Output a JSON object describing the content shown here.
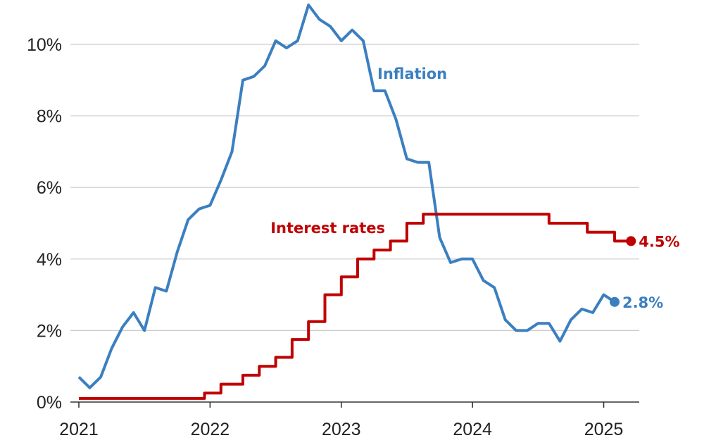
{
  "chart_data": {
    "type": "line",
    "title": "",
    "xlabel": "",
    "ylabel": "",
    "xlim": [
      2021.0,
      2025.25
    ],
    "ylim": [
      0,
      11
    ],
    "grid": true,
    "legend": "direct labels",
    "x_ticks": [
      {
        "value": 2021,
        "label": "2021"
      },
      {
        "value": 2022,
        "label": "2022"
      },
      {
        "value": 2023,
        "label": "2023"
      },
      {
        "value": 2024,
        "label": "2024"
      },
      {
        "value": 2025,
        "label": "2025"
      }
    ],
    "y_ticks": [
      {
        "value": 0,
        "label": "0%"
      },
      {
        "value": 2,
        "label": "2%"
      },
      {
        "value": 4,
        "label": "4%"
      },
      {
        "value": 6,
        "label": "6%"
      },
      {
        "value": 8,
        "label": "8%"
      },
      {
        "value": 10,
        "label": "10%"
      }
    ],
    "series": [
      {
        "name": "Inflation",
        "color": "#3b7fc0",
        "end_label": "2.8%",
        "x": [
          2021.0,
          2021.083,
          2021.167,
          2021.25,
          2021.333,
          2021.417,
          2021.5,
          2021.583,
          2021.667,
          2021.75,
          2021.833,
          2021.917,
          2022.0,
          2022.083,
          2022.167,
          2022.25,
          2022.333,
          2022.417,
          2022.5,
          2022.583,
          2022.667,
          2022.75,
          2022.833,
          2022.917,
          2023.0,
          2023.083,
          2023.167,
          2023.25,
          2023.333,
          2023.417,
          2023.5,
          2023.583,
          2023.667,
          2023.75,
          2023.833,
          2023.917,
          2024.0,
          2024.083,
          2024.167,
          2024.25,
          2024.333,
          2024.417,
          2024.5,
          2024.583,
          2024.667,
          2024.75,
          2024.833,
          2024.917,
          2025.0,
          2025.083
        ],
        "y": [
          0.7,
          0.4,
          0.7,
          1.5,
          2.1,
          2.5,
          2.0,
          3.2,
          3.1,
          4.2,
          5.1,
          5.4,
          5.5,
          6.2,
          7.0,
          9.0,
          9.1,
          9.4,
          10.1,
          9.9,
          10.1,
          11.1,
          10.7,
          10.5,
          10.1,
          10.4,
          10.1,
          8.7,
          8.7,
          7.9,
          6.8,
          6.7,
          6.7,
          4.6,
          3.9,
          4.0,
          4.0,
          3.4,
          3.2,
          2.3,
          2.0,
          2.0,
          2.2,
          2.2,
          1.7,
          2.3,
          2.6,
          2.5,
          3.0,
          2.8
        ]
      },
      {
        "name": "Interest rates",
        "color": "#c00000",
        "end_label": "4.5%",
        "step": true,
        "x": [
          2021.0,
          2021.958,
          2022.083,
          2022.25,
          2022.375,
          2022.5,
          2022.625,
          2022.75,
          2022.875,
          2023.0,
          2023.125,
          2023.25,
          2023.375,
          2023.5,
          2023.625,
          2024.583,
          2024.875,
          2025.083,
          2025.208
        ],
        "y": [
          0.1,
          0.25,
          0.5,
          0.75,
          1.0,
          1.25,
          1.75,
          2.25,
          3.0,
          3.5,
          4.0,
          4.25,
          4.5,
          5.0,
          5.25,
          5.0,
          4.75,
          4.5,
          4.5
        ]
      }
    ]
  }
}
